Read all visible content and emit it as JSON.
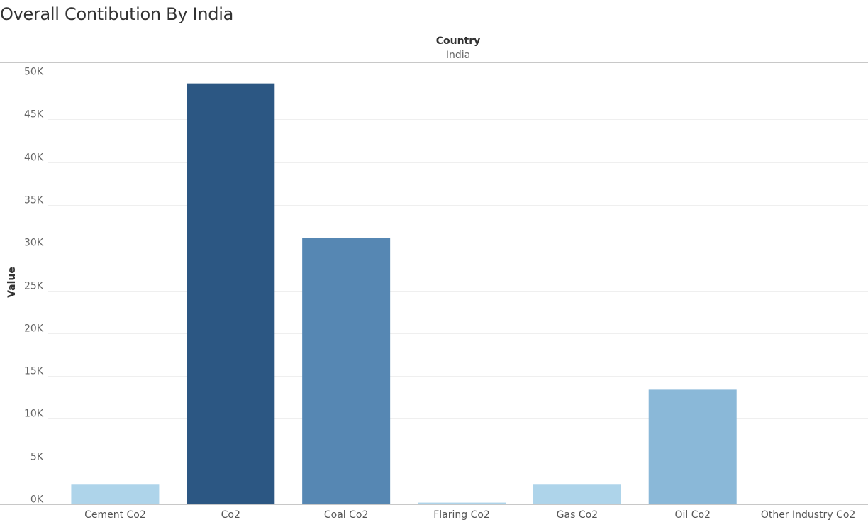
{
  "title": "Overall Contibution By India",
  "header": {
    "field": "Country",
    "value": "India"
  },
  "chart_data": {
    "type": "bar",
    "title": "Overall Contibution By India",
    "xlabel": "",
    "ylabel": "Value",
    "ylim": [
      0,
      50000
    ],
    "yticks": [
      0,
      5000,
      10000,
      15000,
      20000,
      25000,
      30000,
      35000,
      40000,
      45000,
      50000
    ],
    "ytick_labels": [
      "0K",
      "5K",
      "10K",
      "15K",
      "20K",
      "25K",
      "30K",
      "35K",
      "40K",
      "45K",
      "50K"
    ],
    "categories": [
      "Cement Co2",
      "Co2",
      "Coal Co2",
      "Flaring Co2",
      "Gas Co2",
      "Oil Co2",
      "Other Industry Co2"
    ],
    "values": [
      2300,
      49200,
      31100,
      200,
      2300,
      13400,
      0
    ],
    "colors": [
      "#aed4ea",
      "#2c5783",
      "#5687b3",
      "#aed4ea",
      "#aed4ea",
      "#8ab8d8",
      "#aed4ea"
    ],
    "grid": true
  }
}
